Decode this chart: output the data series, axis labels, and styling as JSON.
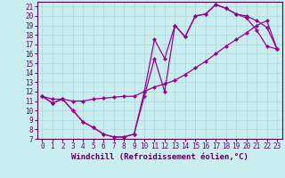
{
  "xlabel": "Windchill (Refroidissement éolien,°C)",
  "bg_color": "#c8eef0",
  "grid_color": "#b0d8d8",
  "line_color": "#990099",
  "xlim": [
    -0.5,
    23.5
  ],
  "ylim": [
    7,
    21.5
  ],
  "xticks": [
    0,
    1,
    2,
    3,
    4,
    5,
    6,
    7,
    8,
    9,
    10,
    11,
    12,
    13,
    14,
    15,
    16,
    17,
    18,
    19,
    20,
    21,
    22,
    23
  ],
  "yticks": [
    7,
    8,
    9,
    10,
    11,
    12,
    13,
    14,
    15,
    16,
    17,
    18,
    19,
    20,
    21
  ],
  "line1_x": [
    0,
    1,
    2,
    3,
    4,
    5,
    6,
    7,
    8,
    9,
    10,
    11,
    12,
    13,
    14,
    15,
    16,
    17,
    18,
    19,
    20,
    21,
    22,
    23
  ],
  "line1_y": [
    11.5,
    10.8,
    11.2,
    10.0,
    8.8,
    8.2,
    7.5,
    7.2,
    7.2,
    7.5,
    11.5,
    15.5,
    12.0,
    19.0,
    17.8,
    20.0,
    20.2,
    21.2,
    20.8,
    20.2,
    19.8,
    18.5,
    16.8,
    16.5
  ],
  "line2_x": [
    0,
    1,
    2,
    3,
    4,
    5,
    6,
    7,
    8,
    9,
    10,
    11,
    12,
    13,
    14,
    15,
    16,
    17,
    18,
    19,
    20,
    21,
    22,
    23
  ],
  "line2_y": [
    11.5,
    10.8,
    11.2,
    10.0,
    8.8,
    8.2,
    7.5,
    7.2,
    7.2,
    7.5,
    12.0,
    17.5,
    15.5,
    19.0,
    17.8,
    20.0,
    20.2,
    21.2,
    20.8,
    20.2,
    20.0,
    19.5,
    18.8,
    16.5
  ],
  "line3_x": [
    0,
    1,
    2,
    3,
    4,
    5,
    6,
    7,
    8,
    9,
    10,
    11,
    12,
    13,
    14,
    15,
    16,
    17,
    18,
    19,
    20,
    21,
    22,
    23
  ],
  "line3_y": [
    11.5,
    11.2,
    11.2,
    11.0,
    11.0,
    11.2,
    11.3,
    11.4,
    11.5,
    11.5,
    12.0,
    12.5,
    12.8,
    13.2,
    13.8,
    14.5,
    15.2,
    16.0,
    16.8,
    17.5,
    18.2,
    19.0,
    19.5,
    16.5
  ],
  "markersize": 2.5,
  "linewidth": 0.9,
  "fontsize_ticks": 5.5,
  "fontsize_xlabel": 6.5
}
